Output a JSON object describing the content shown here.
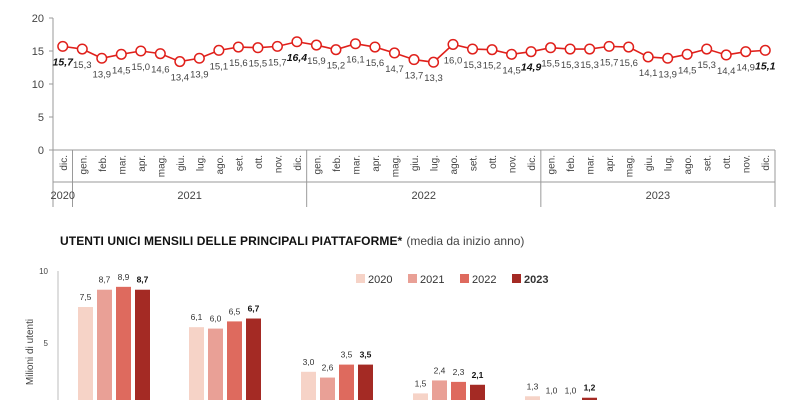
{
  "colors": {
    "line": "#e0201b",
    "axis": "#9a9a9a",
    "grid": "#d9d9d9",
    "c2020": "#f6d3c7",
    "c2021": "#e9a096",
    "c2022": "#de6a5e",
    "c2023": "#a42a24"
  },
  "chart_data": [
    {
      "type": "line",
      "yticks": [
        "0",
        "5",
        "10",
        "15",
        "20"
      ],
      "ylim": [
        0,
        20
      ],
      "grid": false,
      "months": [
        "dic.",
        "gen.",
        "feb.",
        "mar.",
        "apr.",
        "mag.",
        "giu.",
        "lug.",
        "ago.",
        "set.",
        "ott.",
        "nov.",
        "dic.",
        "gen.",
        "feb.",
        "mar.",
        "apr.",
        "mag.",
        "giu.",
        "lug.",
        "ago.",
        "set.",
        "ott.",
        "nov.",
        "dic.",
        "gen.",
        "feb.",
        "mar.",
        "apr.",
        "mag.",
        "giu.",
        "lug.",
        "ago.",
        "set.",
        "ott.",
        "nov.",
        "dic."
      ],
      "values": [
        15.7,
        15.3,
        13.9,
        14.5,
        15.0,
        14.6,
        13.4,
        13.9,
        15.1,
        15.6,
        15.5,
        15.7,
        16.4,
        15.9,
        15.2,
        16.1,
        15.6,
        14.7,
        13.7,
        13.3,
        16.0,
        15.3,
        15.2,
        14.5,
        14.9,
        15.5,
        15.3,
        15.3,
        15.7,
        15.6,
        14.1,
        13.9,
        14.5,
        15.3,
        14.4,
        14.9,
        15.1
      ],
      "value_labels": [
        "15,7",
        "15,3",
        "13,9",
        "14,5",
        "15,0",
        "14,6",
        "13,4",
        "13,9",
        "15,1",
        "15,6",
        "15,5",
        "15,7",
        "16,4",
        "15,9",
        "15,2",
        "16,1",
        "15,6",
        "14,7",
        "13,7",
        "13,3",
        "16,0",
        "15,3",
        "15,2",
        "14,5",
        "14,9",
        "15,5",
        "15,3",
        "15,3",
        "15,7",
        "15,6",
        "14,1",
        "13,9",
        "14,5",
        "15,3",
        "14,4",
        "14,9",
        "15,1"
      ],
      "bold_points": [
        0,
        12,
        24,
        36
      ],
      "years": [
        {
          "label": "2020",
          "first": 0,
          "last": 0
        },
        {
          "label": "2021",
          "first": 1,
          "last": 12
        },
        {
          "label": "2022",
          "first": 13,
          "last": 24
        },
        {
          "label": "2023",
          "first": 25,
          "last": 36
        }
      ]
    },
    {
      "type": "bar",
      "title": "UTENTI UNICI MENSILI DELLE PRINCIPALI PIATTAFORME*",
      "subtitle": "(media da inizio anno)",
      "ylabel": "Milioni di utenti",
      "yticks": [
        "5",
        "10"
      ],
      "ylim": [
        0,
        10
      ],
      "series": [
        {
          "name": "2020",
          "values": [
            7.5,
            6.1,
            3.0,
            1.5,
            1.3
          ]
        },
        {
          "name": "2021",
          "values": [
            8.7,
            6.0,
            2.6,
            2.4,
            1.0
          ]
        },
        {
          "name": "2022",
          "values": [
            8.9,
            6.5,
            3.5,
            2.3,
            1.0
          ]
        },
        {
          "name": "2023",
          "values": [
            8.7,
            6.7,
            3.5,
            2.1,
            1.2
          ]
        }
      ],
      "value_labels": [
        [
          "7,5",
          "8,7",
          "8,9",
          "8,7"
        ],
        [
          "6,1",
          "6,0",
          "6,5",
          "6,7"
        ],
        [
          "3,0",
          "2,6",
          "3,5",
          "3,5"
        ],
        [
          "1,5",
          "2,4",
          "2,3",
          "2,1"
        ],
        [
          "1,3",
          "1,0",
          "1,0",
          "1,2"
        ]
      ]
    }
  ]
}
